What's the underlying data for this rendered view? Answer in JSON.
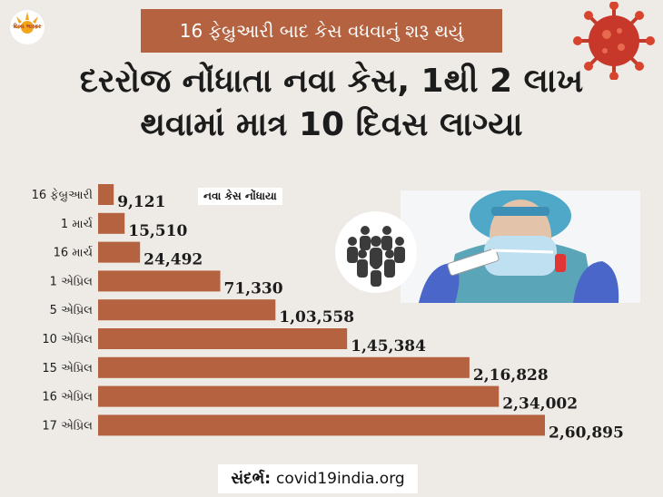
{
  "logo": {
    "text": "દિવ્ય ભાસ્કર"
  },
  "banner": {
    "text": "16 ફેબ્રુઆરી બાદ કેસ વધવાનું શરૂ થયું"
  },
  "headline": {
    "line1": "દરરોજ નોંધાતા નવા કેસ, 1થી 2 લાખ",
    "line2": "થવામાં માત્ર 10 દિવસ લાગ્યા"
  },
  "legend": {
    "text": "નવા કેસ નોંધાયા"
  },
  "source": {
    "label": "સંદર્ભ:",
    "value": "covid19india.org"
  },
  "colors": {
    "bar": "#b4623f",
    "background": "#eeebe6",
    "banner": "#b4623f"
  },
  "icons": {
    "virus": "coronavirus-icon",
    "crowd": "people-group-icon",
    "photo": "health-worker-test-swab-photo"
  },
  "chart_data": {
    "type": "bar",
    "orientation": "horizontal",
    "categories": [
      "16 ફેબ્રુઆરી",
      "1 માર્ચ",
      "16 માર્ચ",
      "1 એપ્રિલ",
      "5 એપ્રિલ",
      "10 એપ્રિલ",
      "15 એપ્રિલ",
      "16 એપ્રિલ",
      "17 એપ્રિલ"
    ],
    "values": [
      9121,
      15510,
      24492,
      71330,
      103558,
      145384,
      216828,
      234002,
      260895
    ],
    "labels": [
      "9,121",
      "15,510",
      "24,492",
      "71,330",
      "1,03,558",
      "1,45,384",
      "2,16,828",
      "2,34,002",
      "2,60,895"
    ],
    "legend": "top-left"
  }
}
